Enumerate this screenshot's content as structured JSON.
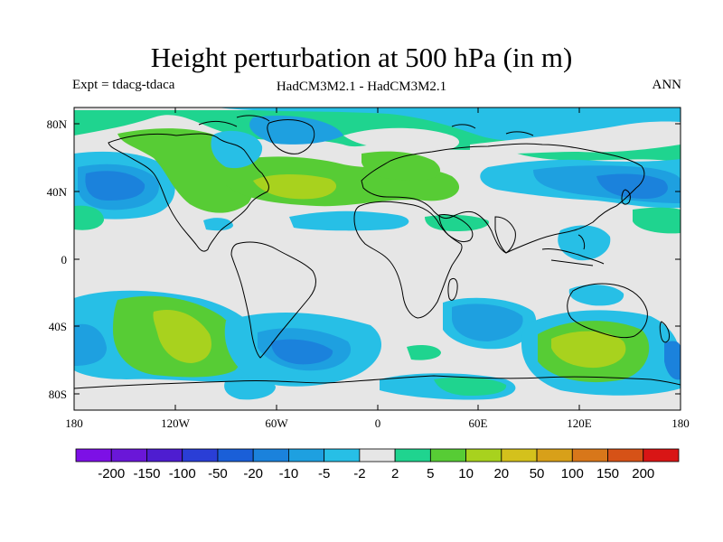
{
  "title": "Height perturbation at 500 hPa (in m)",
  "experiment": "Expt = tdacg-tdaca",
  "models": "HadCM3M2.1 - HadCM3M2.1",
  "season": "ANN",
  "map": {
    "lat_ticks": [
      "80N",
      "40N",
      "0",
      "40S",
      "80S"
    ],
    "lon_ticks": [
      "180",
      "120W",
      "60W",
      "0",
      "60E",
      "120E",
      "180"
    ],
    "background_color": "#e6e6e6"
  },
  "colorbar": {
    "colors": [
      "#7d10e6",
      "#6a17d8",
      "#4e1dd0",
      "#2a3ed6",
      "#1a5fd8",
      "#1b82dc",
      "#1ea0e0",
      "#27bfe6",
      "#e6e6e6",
      "#1fd48f",
      "#57cc35",
      "#a8d21e",
      "#d4c11c",
      "#d8a019",
      "#d8771a",
      "#d65217",
      "#d91515"
    ],
    "labels": [
      "-200",
      "-150",
      "-100",
      "-50",
      "-20",
      "-10",
      "-5",
      "-2",
      "2",
      "5",
      "10",
      "20",
      "50",
      "100",
      "150",
      "200"
    ]
  }
}
